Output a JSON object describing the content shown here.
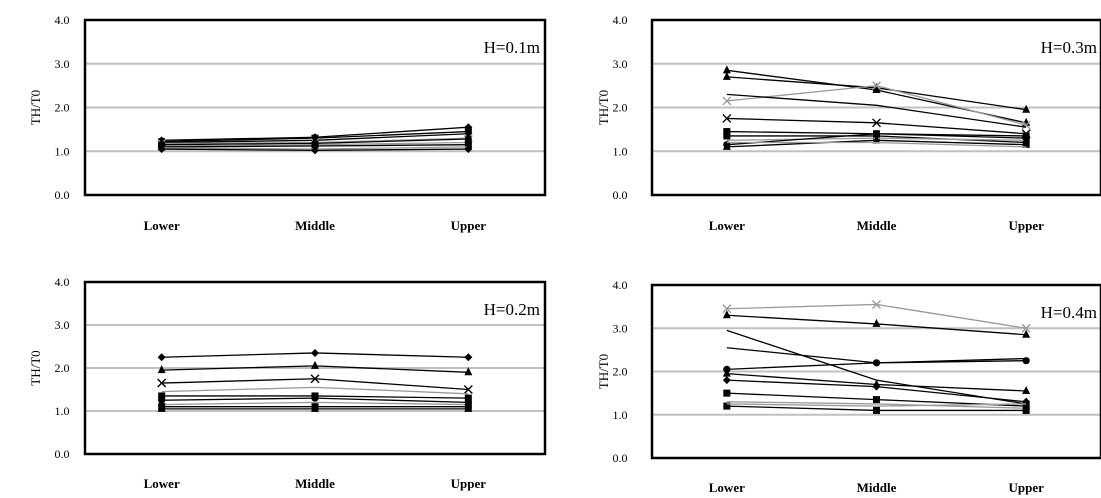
{
  "colors": {
    "gridline": "#c0c0c0",
    "frame": "#000000",
    "series_black": "#000000",
    "series_gray": "#999999"
  },
  "chart_data": [
    {
      "type": "line",
      "annotation": "H=0.1m",
      "ylabel": "TH/T0",
      "ylim": [
        0,
        4
      ],
      "yticks": [
        "0.0",
        "1.0",
        "2.0",
        "3.0",
        "4.0"
      ],
      "categories": [
        "Lower",
        "Middle",
        "Upper"
      ],
      "grid": true,
      "series": [
        {
          "values": [
            1.25,
            1.32,
            1.55
          ],
          "color": "black",
          "marker": "diamond"
        },
        {
          "values": [
            1.22,
            1.3,
            1.45
          ],
          "color": "black",
          "marker": "square"
        },
        {
          "values": [
            1.2,
            1.25,
            1.4
          ],
          "color": "black",
          "marker": "triangle"
        },
        {
          "values": [
            1.18,
            1.2,
            1.3
          ],
          "color": "gray",
          "marker": "x"
        },
        {
          "values": [
            1.15,
            1.18,
            1.28
          ],
          "color": "black",
          "marker": "circle"
        },
        {
          "values": [
            1.12,
            1.15,
            1.2
          ],
          "color": "gray",
          "marker": "none"
        },
        {
          "values": [
            1.1,
            1.12,
            1.15
          ],
          "color": "black",
          "marker": "square"
        },
        {
          "values": [
            1.08,
            1.05,
            1.1
          ],
          "color": "gray",
          "marker": "none"
        },
        {
          "values": [
            1.05,
            1.02,
            1.05
          ],
          "color": "black",
          "marker": "diamond"
        }
      ]
    },
    {
      "type": "line",
      "annotation": "H=0.3m",
      "ylabel": "TH/T0",
      "ylim": [
        0,
        4
      ],
      "yticks": [
        "0.0",
        "1.0",
        "2.0",
        "3.0",
        "4.0"
      ],
      "categories": [
        "Lower",
        "Middle",
        "Upper"
      ],
      "grid": true,
      "series": [
        {
          "values": [
            2.85,
            2.4,
            1.65
          ],
          "color": "black",
          "marker": "triangle"
        },
        {
          "values": [
            2.7,
            2.45,
            1.95
          ],
          "color": "black",
          "marker": "triangle"
        },
        {
          "values": [
            2.15,
            2.5,
            1.6
          ],
          "color": "gray",
          "marker": "x"
        },
        {
          "values": [
            2.3,
            2.05,
            1.55
          ],
          "color": "black",
          "marker": "none"
        },
        {
          "values": [
            1.75,
            1.65,
            1.4
          ],
          "color": "black",
          "marker": "x"
        },
        {
          "values": [
            1.45,
            1.4,
            1.35
          ],
          "color": "black",
          "marker": "square"
        },
        {
          "values": [
            1.35,
            1.35,
            1.2
          ],
          "color": "black",
          "marker": "square"
        },
        {
          "values": [
            1.25,
            1.3,
            1.25
          ],
          "color": "gray",
          "marker": "none"
        },
        {
          "values": [
            1.15,
            1.4,
            1.3
          ],
          "color": "black",
          "marker": "circle"
        },
        {
          "values": [
            1.1,
            1.25,
            1.15
          ],
          "color": "black",
          "marker": "triangle"
        },
        {
          "values": [
            1.2,
            1.2,
            1.1
          ],
          "color": "gray",
          "marker": "none"
        }
      ]
    },
    {
      "type": "line",
      "annotation": "H=0.2m",
      "ylabel": "TH/T0",
      "ylim": [
        0,
        4
      ],
      "yticks": [
        "0.0",
        "1.0",
        "2.0",
        "3.0",
        "4.0"
      ],
      "categories": [
        "Lower",
        "Middle",
        "Upper"
      ],
      "grid": true,
      "series": [
        {
          "values": [
            2.25,
            2.35,
            2.25
          ],
          "color": "black",
          "marker": "diamond"
        },
        {
          "values": [
            1.95,
            2.05,
            1.9
          ],
          "color": "black",
          "marker": "triangle"
        },
        {
          "values": [
            1.65,
            1.75,
            1.5
          ],
          "color": "black",
          "marker": "x"
        },
        {
          "values": [
            1.45,
            1.55,
            1.4
          ],
          "color": "gray",
          "marker": "none"
        },
        {
          "values": [
            1.35,
            1.35,
            1.3
          ],
          "color": "black",
          "marker": "square"
        },
        {
          "values": [
            1.25,
            1.3,
            1.2
          ],
          "color": "black",
          "marker": "circle"
        },
        {
          "values": [
            1.15,
            1.2,
            1.15
          ],
          "color": "gray",
          "marker": "none"
        },
        {
          "values": [
            1.1,
            1.1,
            1.1
          ],
          "color": "black",
          "marker": "square"
        },
        {
          "values": [
            1.05,
            1.05,
            1.05
          ],
          "color": "black",
          "marker": "triangle"
        }
      ]
    },
    {
      "type": "line",
      "annotation": "H=0.4m",
      "ylabel": "TH/T0",
      "ylim": [
        0,
        4
      ],
      "yticks": [
        "0.0",
        "1.0",
        "2.0",
        "3.0",
        "4.0"
      ],
      "categories": [
        "Lower",
        "Middle",
        "Upper"
      ],
      "grid": true,
      "series": [
        {
          "values": [
            3.45,
            3.55,
            3.0
          ],
          "color": "gray",
          "marker": "x"
        },
        {
          "values": [
            3.3,
            3.1,
            2.85
          ],
          "color": "black",
          "marker": "triangle"
        },
        {
          "values": [
            2.95,
            1.8,
            1.25
          ],
          "color": "black",
          "marker": "none"
        },
        {
          "values": [
            2.55,
            2.2,
            2.3
          ],
          "color": "black",
          "marker": "none"
        },
        {
          "values": [
            2.05,
            2.2,
            2.25
          ],
          "color": "black",
          "marker": "circle"
        },
        {
          "values": [
            1.95,
            1.7,
            1.55
          ],
          "color": "black",
          "marker": "triangle"
        },
        {
          "values": [
            1.8,
            1.65,
            1.3
          ],
          "color": "black",
          "marker": "diamond"
        },
        {
          "values": [
            1.5,
            1.35,
            1.2
          ],
          "color": "black",
          "marker": "square"
        },
        {
          "values": [
            1.3,
            1.25,
            1.15
          ],
          "color": "gray",
          "marker": "none"
        },
        {
          "values": [
            1.2,
            1.1,
            1.1
          ],
          "color": "black",
          "marker": "square"
        },
        {
          "values": [
            1.25,
            1.2,
            1.25
          ],
          "color": "gray",
          "marker": "none"
        }
      ]
    }
  ]
}
